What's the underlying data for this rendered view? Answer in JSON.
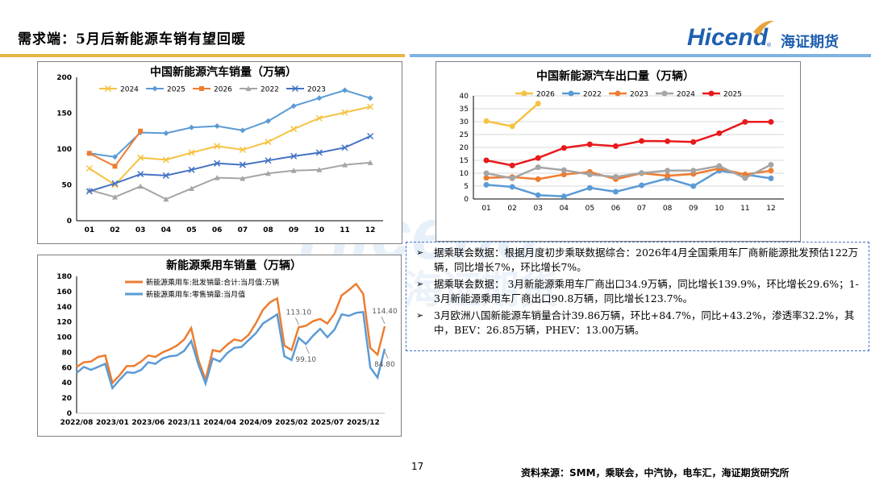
{
  "header": {
    "title": "需求端：5月后新能源车销有望回暖",
    "logo_en": "Hicend",
    "logo_cn": "海证期货",
    "logo_mark": "®"
  },
  "watermark": {
    "en": "Hicend",
    "cn": "海证期货"
  },
  "notes": [
    "据乘联会数据：根据月度初步乘联数据综合：2026年4月全国乘用车厂商新能源批发预估122万辆，同比增长7%，环比增长7%。",
    "据乘联会数据： 3月新能源乘用车厂商出口34.9万辆，同比增长139.9%，环比增长29.6%；1-3月新能源乘用车厂商出口90.8万辆，同比增长123.7%。",
    "3月欧洲八国新能源车销量合计39.86万辆，环比+84.7%，同比+43.2%，渗透率32.2%，其中，BEV：26.85万辆，PHEV：13.00万辆。"
  ],
  "bullet": "➢",
  "footer": {
    "page_number": "17",
    "source": "资料来源：SMM，乘联会，中汽协，电车汇，海证期货研究所"
  },
  "chart_data": [
    {
      "type": "line",
      "title": "中国新能源汽车销量（万辆）",
      "categories": [
        "01",
        "02",
        "03",
        "04",
        "05",
        "06",
        "07",
        "08",
        "09",
        "10",
        "11",
        "12"
      ],
      "ylim": [
        0,
        200
      ],
      "yticks": [
        0,
        50,
        100,
        150,
        200
      ],
      "legend": "top",
      "grid": false,
      "series": [
        {
          "name": "2024",
          "color": "#f5c242",
          "marker": "x",
          "values": [
            73,
            50,
            88,
            85,
            95,
            104,
            99,
            110,
            128,
            143,
            151,
            159
          ]
        },
        {
          "name": "2025",
          "color": "#5b9bd5",
          "marker": "diamond",
          "values": [
            94,
            89,
            123,
            122,
            130,
            132,
            126,
            139,
            160,
            171,
            182,
            171
          ]
        },
        {
          "name": "2026",
          "color": "#ed7d31",
          "marker": "square",
          "values": [
            94,
            76,
            125,
            null,
            null,
            null,
            null,
            null,
            null,
            null,
            null,
            null
          ]
        },
        {
          "name": "2022",
          "color": "#a5a5a5",
          "marker": "triangle",
          "values": [
            43,
            33,
            48,
            30,
            45,
            60,
            59,
            66,
            70,
            71,
            78,
            81
          ]
        },
        {
          "name": "2023",
          "color": "#4472c4",
          "marker": "x",
          "values": [
            41,
            52,
            65,
            63,
            71,
            80,
            78,
            84,
            90,
            95,
            102,
            118
          ]
        }
      ]
    },
    {
      "type": "line",
      "title": "中国新能源汽车出口量（万辆）",
      "categories": [
        "01",
        "02",
        "03",
        "04",
        "05",
        "06",
        "07",
        "08",
        "09",
        "10",
        "11",
        "12"
      ],
      "ylim": [
        0,
        40
      ],
      "yticks": [
        0,
        5,
        10,
        15,
        20,
        25,
        30,
        35,
        40
      ],
      "legend": "top",
      "grid": true,
      "series": [
        {
          "name": "2026",
          "color": "#f5c242",
          "values": [
            30.2,
            28.2,
            37,
            null,
            null,
            null,
            null,
            null,
            null,
            null,
            null,
            null
          ]
        },
        {
          "name": "2022",
          "color": "#5b9bd5",
          "values": [
            5.5,
            4.7,
            1.5,
            1.0,
            4.3,
            2.8,
            5.3,
            8.0,
            5.0,
            11.0,
            9.5,
            8.0
          ]
        },
        {
          "name": "2023",
          "color": "#ed7d31",
          "values": [
            8.2,
            8.5,
            7.7,
            9.5,
            10.5,
            7.7,
            10.0,
            9.0,
            9.7,
            11.8,
            9.5,
            11.0
          ]
        },
        {
          "name": "2024",
          "color": "#a5a5a5",
          "values": [
            10.0,
            8.0,
            12.3,
            11.2,
            9.5,
            8.6,
            10.1,
            11.0,
            11.0,
            12.8,
            8.1,
            13.3
          ]
        },
        {
          "name": "2025",
          "color": "#e8191b",
          "values": [
            15.0,
            13.0,
            15.9,
            19.8,
            21.2,
            20.5,
            22.5,
            22.4,
            22.1,
            25.5,
            29.9,
            29.9
          ]
        }
      ]
    },
    {
      "type": "line",
      "title": "新能源乘用车销量（万辆）",
      "x_ticks": [
        "2022/08",
        "2023/01",
        "2023/06",
        "2023/11",
        "2024/04",
        "2024/09",
        "2025/02",
        "2025/07",
        "2025/12"
      ],
      "x_tick_index": [
        0,
        5,
        10,
        15,
        20,
        25,
        30,
        35,
        40
      ],
      "ylim": [
        0,
        180
      ],
      "yticks": [
        0,
        20,
        40,
        60,
        80,
        100,
        120,
        140,
        160,
        180
      ],
      "legend": "top",
      "grid": false,
      "annotations": [
        {
          "label": "113.10",
          "index": 31,
          "series": 0
        },
        {
          "label": "99.10",
          "index": 32,
          "series": 1
        },
        {
          "label": "114.40",
          "index": 43,
          "series": 0
        },
        {
          "label": "84.80",
          "index": 43,
          "series": 1
        }
      ],
      "series": [
        {
          "name": "新能源乘用车:批发销量:合计:当月值:万辆",
          "color": "#ed7d31",
          "values": [
            61,
            67,
            68,
            74,
            76,
            40,
            50,
            62,
            62,
            68,
            76,
            74,
            80,
            84,
            89,
            97,
            112,
            70,
            44,
            83,
            81,
            90,
            97,
            95,
            103,
            118,
            136,
            146,
            151,
            89,
            83,
            113,
            115,
            121,
            124,
            118,
            131,
            155,
            162,
            170,
            157,
            86,
            77,
            114.4
          ]
        },
        {
          "name": "新能源乘用车:零售销量:当月值",
          "color": "#5b9bd5",
          "values": [
            53,
            61,
            57,
            61,
            65,
            33,
            44,
            54,
            53,
            57,
            67,
            65,
            72,
            75,
            76,
            82,
            95,
            64,
            39,
            72,
            68,
            79,
            86,
            87,
            96,
            105,
            118,
            124,
            130,
            75,
            70,
            99.1,
            91,
            102,
            111,
            100,
            110,
            130,
            128,
            132,
            133,
            60,
            47,
            84.8
          ]
        }
      ]
    }
  ]
}
